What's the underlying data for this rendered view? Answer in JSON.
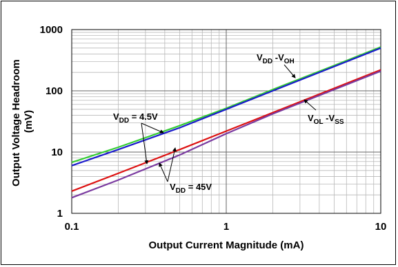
{
  "chart_data": {
    "type": "line",
    "x_scale": "log",
    "y_scale": "log",
    "xlim": [
      0.1,
      10
    ],
    "ylim": [
      1,
      1000
    ],
    "grid": true,
    "xlabel": "Output Current Magnitude (mA)",
    "ylabel_line1": "Output Voltage Headroom",
    "ylabel_line2": "(mV)",
    "x_ticks": [
      {
        "value": 0.1,
        "label": "0.1"
      },
      {
        "value": 1,
        "label": "1"
      },
      {
        "value": 10,
        "label": "10"
      }
    ],
    "y_ticks": [
      {
        "value": 1,
        "label": "1"
      },
      {
        "value": 10,
        "label": "10"
      },
      {
        "value": 100,
        "label": "100"
      },
      {
        "value": 1000,
        "label": "1000"
      }
    ],
    "series": [
      {
        "color": "#33cc33",
        "x": [
          0.1,
          0.2,
          0.5,
          1,
          2,
          5,
          10
        ],
        "y": [
          6.8,
          12,
          27,
          52,
          105,
          260,
          520
        ]
      },
      {
        "color": "#1a1acc",
        "x": [
          0.1,
          0.2,
          0.5,
          1,
          2,
          5,
          10
        ],
        "y": [
          6.0,
          11,
          25,
          50,
          100,
          250,
          500
        ]
      },
      {
        "color": "#dd1111",
        "x": [
          0.1,
          0.2,
          0.5,
          1,
          2,
          5,
          10
        ],
        "y": [
          2.3,
          4.5,
          11,
          22,
          44,
          110,
          220
        ]
      },
      {
        "color": "#7a3aa0",
        "x": [
          0.1,
          0.2,
          0.5,
          1,
          2,
          5,
          10
        ],
        "y": [
          1.8,
          3.5,
          9,
          20,
          42,
          105,
          210
        ]
      }
    ],
    "annotations": [
      {
        "id": "vdd-voh",
        "main": "V",
        "sub1": "DD",
        "mid": " -V",
        "sub2": "OH"
      },
      {
        "id": "vol-vss",
        "main": "V",
        "sub1": "OL",
        "mid": " -V",
        "sub2": "SS"
      },
      {
        "id": "vdd-4p5",
        "main": "V",
        "sub1": "DD",
        "mid": " = 4.5V",
        "sub2": ""
      },
      {
        "id": "vdd-45",
        "main": "V",
        "sub1": "DD",
        "mid": " = 45V",
        "sub2": ""
      }
    ]
  }
}
